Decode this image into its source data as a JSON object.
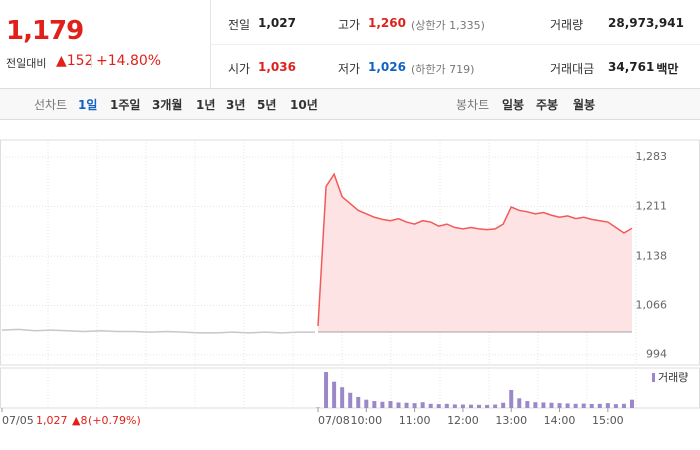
{
  "header": {
    "price": "1,179",
    "change_label": "전일대비",
    "change": "▲152",
    "rate": "+14.80%",
    "stats": [
      {
        "label": "전일",
        "value": "1,027"
      },
      {
        "label": "고가",
        "value": "1,260",
        "note": "(상한가 1,335)"
      },
      {
        "label": "거래량",
        "value": "28,973,941"
      },
      {
        "label": "시가",
        "value": "1,036"
      },
      {
        "label": "저가",
        "value": "1,026",
        "note": "(하한가 719)"
      },
      {
        "label": "거래대금",
        "value": "34,761",
        "unit": "백만"
      }
    ]
  },
  "tabs": {
    "line_label": "선차트",
    "line": [
      "1일",
      "1주일",
      "3개월",
      "1년",
      "3년",
      "5년",
      "10년"
    ],
    "active": 0,
    "candle_label": "봉차트",
    "candle": [
      "일봉",
      "주봉",
      "월봉"
    ]
  },
  "chart_data": {
    "type": "line",
    "ylim": [
      979,
      1308
    ],
    "yticks": [
      {
        "value": 994,
        "label": "994"
      },
      {
        "value": 1066,
        "label": "1,066"
      },
      {
        "value": 1138,
        "label": "1,138"
      },
      {
        "value": 1211,
        "label": "1,211"
      },
      {
        "value": 1283,
        "label": "1,283"
      }
    ],
    "grid": true,
    "previous": {
      "date": "07/05",
      "close": "1,027",
      "change": "▲8",
      "rate": "(+0.79%)",
      "color": "#c8c8c8",
      "values": [
        1030,
        1031,
        1029,
        1030,
        1029,
        1028,
        1029,
        1028,
        1028,
        1027,
        1028,
        1027,
        1026,
        1026,
        1027,
        1026,
        1027,
        1026,
        1027,
        1027
      ]
    },
    "today": {
      "date": "07/08",
      "color": "#f25a5a",
      "fill": "#fde3e3",
      "x": [
        "09:00",
        "09:10",
        "09:20",
        "09:30",
        "09:40",
        "09:50",
        "10:00",
        "10:10",
        "10:20",
        "10:30",
        "10:40",
        "10:50",
        "11:00",
        "11:10",
        "11:20",
        "11:30",
        "11:40",
        "11:50",
        "12:00",
        "12:10",
        "12:20",
        "12:30",
        "12:40",
        "12:50",
        "13:00",
        "13:10",
        "13:20",
        "13:30",
        "13:40",
        "13:50",
        "14:00",
        "14:10",
        "14:20",
        "14:30",
        "14:40",
        "14:50",
        "15:00",
        "15:10",
        "15:20",
        "15:30"
      ],
      "values": [
        1036,
        1240,
        1258,
        1225,
        1215,
        1205,
        1200,
        1195,
        1192,
        1190,
        1193,
        1188,
        1185,
        1190,
        1188,
        1182,
        1185,
        1180,
        1178,
        1180,
        1178,
        1177,
        1178,
        1185,
        1210,
        1205,
        1203,
        1200,
        1202,
        1198,
        1195,
        1197,
        1193,
        1195,
        1192,
        1190,
        1188,
        1180,
        1172,
        1179
      ]
    },
    "volume": {
      "name": "거래량",
      "color": "#9c88c9",
      "values": [
        40,
        2600,
        1900,
        1500,
        1100,
        800,
        600,
        500,
        450,
        500,
        400,
        380,
        350,
        420,
        300,
        280,
        300,
        260,
        250,
        240,
        230,
        220,
        250,
        380,
        1300,
        700,
        500,
        420,
        400,
        380,
        350,
        330,
        300,
        320,
        290,
        300,
        350,
        280,
        300,
        600
      ]
    }
  }
}
